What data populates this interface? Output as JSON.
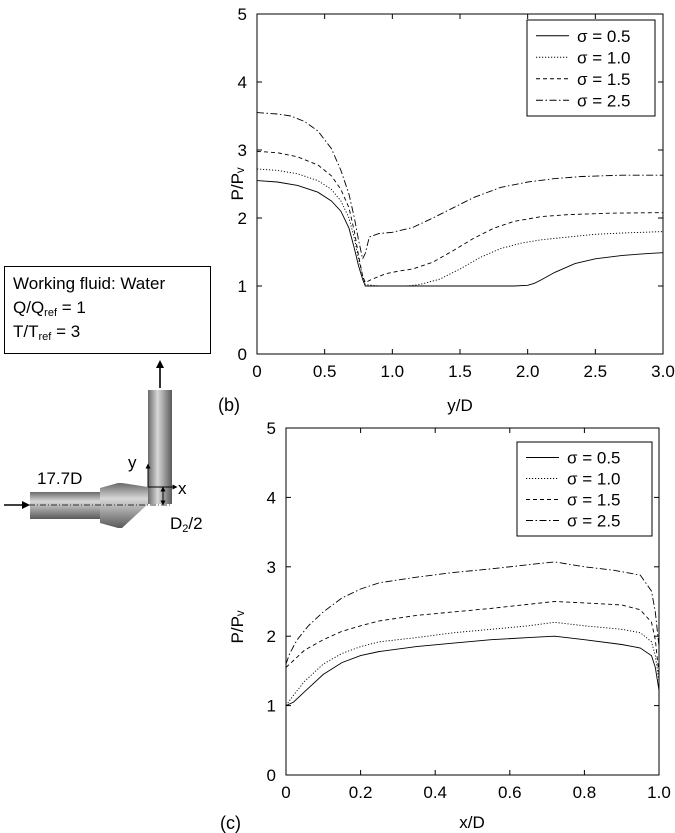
{
  "info_box": {
    "line1": "Working fluid: Water",
    "line2_main": "Q/Q",
    "line2_sub": "ref",
    "line2_val": " = 1",
    "line3_main": "T/T",
    "line3_sub": "ref",
    "line3_val": " = 3"
  },
  "schematic": {
    "length_label": "17.7D",
    "diameter_main": "D",
    "diameter_sub": "2",
    "diameter_tail": "/2",
    "x_axis_label": "x",
    "y_axis_label": "y"
  },
  "chart_data": [
    {
      "id": "b",
      "panel_label": "(b)",
      "type": "line",
      "xlabel": "y/D",
      "ylabel": "P/Pᵥ",
      "xlim": [
        0,
        3.0
      ],
      "ylim": [
        0,
        5
      ],
      "xticks": [
        "0",
        "0.5",
        "1.0",
        "1.5",
        "2.0",
        "2.5",
        "3.0"
      ],
      "xtick_values": [
        0,
        0.5,
        1.0,
        1.5,
        2.0,
        2.5,
        3.0
      ],
      "yticks": [
        "0",
        "1",
        "2",
        "3",
        "4",
        "5"
      ],
      "ytick_values": [
        0,
        1,
        2,
        3,
        4,
        5
      ],
      "legend_position": "top-right",
      "series": [
        {
          "name": "σ = 0.5",
          "dash": "",
          "points": [
            [
              0,
              2.55
            ],
            [
              0.15,
              2.53
            ],
            [
              0.3,
              2.48
            ],
            [
              0.45,
              2.38
            ],
            [
              0.55,
              2.25
            ],
            [
              0.62,
              2.1
            ],
            [
              0.68,
              1.85
            ],
            [
              0.72,
              1.55
            ],
            [
              0.75,
              1.3
            ],
            [
              0.78,
              1.1
            ],
            [
              0.8,
              1.0
            ],
            [
              1.0,
              1.0
            ],
            [
              1.5,
              1.0
            ],
            [
              1.9,
              1.0
            ],
            [
              2.0,
              1.01
            ],
            [
              2.05,
              1.04
            ],
            [
              2.1,
              1.09
            ],
            [
              2.2,
              1.2
            ],
            [
              2.35,
              1.33
            ],
            [
              2.5,
              1.4
            ],
            [
              2.7,
              1.45
            ],
            [
              2.9,
              1.48
            ],
            [
              3.0,
              1.49
            ]
          ]
        },
        {
          "name": "σ = 1.0",
          "dash": "1.2,1.8",
          "points": [
            [
              0,
              2.72
            ],
            [
              0.15,
              2.7
            ],
            [
              0.3,
              2.65
            ],
            [
              0.45,
              2.55
            ],
            [
              0.55,
              2.42
            ],
            [
              0.62,
              2.25
            ],
            [
              0.68,
              2.0
            ],
            [
              0.72,
              1.7
            ],
            [
              0.75,
              1.4
            ],
            [
              0.78,
              1.15
            ],
            [
              0.8,
              1.02
            ],
            [
              0.9,
              1.0
            ],
            [
              1.1,
              1.0
            ],
            [
              1.2,
              1.02
            ],
            [
              1.35,
              1.1
            ],
            [
              1.5,
              1.25
            ],
            [
              1.65,
              1.42
            ],
            [
              1.8,
              1.55
            ],
            [
              1.95,
              1.63
            ],
            [
              2.1,
              1.68
            ],
            [
              2.3,
              1.72
            ],
            [
              2.5,
              1.76
            ],
            [
              2.7,
              1.78
            ],
            [
              3.0,
              1.8
            ]
          ]
        },
        {
          "name": "σ = 1.5",
          "dash": "4,3",
          "points": [
            [
              0,
              2.98
            ],
            [
              0.15,
              2.96
            ],
            [
              0.3,
              2.9
            ],
            [
              0.45,
              2.78
            ],
            [
              0.55,
              2.62
            ],
            [
              0.62,
              2.42
            ],
            [
              0.68,
              2.15
            ],
            [
              0.72,
              1.8
            ],
            [
              0.75,
              1.45
            ],
            [
              0.78,
              1.15
            ],
            [
              0.8,
              1.05
            ],
            [
              0.85,
              1.1
            ],
            [
              0.95,
              1.18
            ],
            [
              1.05,
              1.22
            ],
            [
              1.15,
              1.25
            ],
            [
              1.3,
              1.35
            ],
            [
              1.45,
              1.52
            ],
            [
              1.6,
              1.7
            ],
            [
              1.75,
              1.85
            ],
            [
              1.9,
              1.95
            ],
            [
              2.1,
              2.02
            ],
            [
              2.3,
              2.05
            ],
            [
              2.6,
              2.07
            ],
            [
              3.0,
              2.08
            ]
          ]
        },
        {
          "name": "σ = 2.5",
          "dash": "7,2.5,1.5,2.5",
          "points": [
            [
              0,
              3.55
            ],
            [
              0.15,
              3.53
            ],
            [
              0.25,
              3.5
            ],
            [
              0.35,
              3.42
            ],
            [
              0.45,
              3.28
            ],
            [
              0.55,
              3.02
            ],
            [
              0.62,
              2.7
            ],
            [
              0.68,
              2.35
            ],
            [
              0.72,
              2.0
            ],
            [
              0.75,
              1.68
            ],
            [
              0.78,
              1.4
            ],
            [
              0.8,
              1.48
            ],
            [
              0.83,
              1.72
            ],
            [
              0.9,
              1.77
            ],
            [
              1.0,
              1.79
            ],
            [
              1.15,
              1.86
            ],
            [
              1.3,
              2.0
            ],
            [
              1.45,
              2.15
            ],
            [
              1.6,
              2.3
            ],
            [
              1.8,
              2.45
            ],
            [
              2.0,
              2.53
            ],
            [
              2.2,
              2.58
            ],
            [
              2.4,
              2.61
            ],
            [
              2.7,
              2.63
            ],
            [
              3.0,
              2.63
            ]
          ]
        }
      ]
    },
    {
      "id": "c",
      "panel_label": "(c)",
      "type": "line",
      "xlabel": "x/D",
      "ylabel": "P/Pᵥ",
      "xlim": [
        0,
        1.0
      ],
      "ylim": [
        0,
        5
      ],
      "xticks": [
        "0",
        "0.2",
        "0.4",
        "0.6",
        "0.8",
        "1.0"
      ],
      "xtick_values": [
        0,
        0.2,
        0.4,
        0.6,
        0.8,
        1.0
      ],
      "yticks": [
        "0",
        "1",
        "2",
        "3",
        "4",
        "5"
      ],
      "ytick_values": [
        0,
        1,
        2,
        3,
        4,
        5
      ],
      "legend_position": "top-right",
      "series": [
        {
          "name": "σ = 0.5",
          "dash": "",
          "points": [
            [
              0,
              1.0
            ],
            [
              0.02,
              1.05
            ],
            [
              0.05,
              1.2
            ],
            [
              0.1,
              1.45
            ],
            [
              0.15,
              1.62
            ],
            [
              0.2,
              1.72
            ],
            [
              0.25,
              1.78
            ],
            [
              0.35,
              1.85
            ],
            [
              0.45,
              1.9
            ],
            [
              0.55,
              1.95
            ],
            [
              0.65,
              1.98
            ],
            [
              0.72,
              2.0
            ],
            [
              0.8,
              1.95
            ],
            [
              0.9,
              1.88
            ],
            [
              0.95,
              1.83
            ],
            [
              0.98,
              1.72
            ],
            [
              0.99,
              1.55
            ],
            [
              1.0,
              1.22
            ]
          ]
        },
        {
          "name": "σ = 1.0",
          "dash": "1.2,1.8",
          "points": [
            [
              0,
              1.0
            ],
            [
              0.02,
              1.15
            ],
            [
              0.05,
              1.35
            ],
            [
              0.1,
              1.6
            ],
            [
              0.15,
              1.75
            ],
            [
              0.2,
              1.85
            ],
            [
              0.25,
              1.92
            ],
            [
              0.35,
              1.98
            ],
            [
              0.45,
              2.05
            ],
            [
              0.55,
              2.1
            ],
            [
              0.65,
              2.15
            ],
            [
              0.72,
              2.2
            ],
            [
              0.8,
              2.15
            ],
            [
              0.9,
              2.1
            ],
            [
              0.95,
              2.05
            ],
            [
              0.98,
              1.92
            ],
            [
              0.99,
              1.72
            ],
            [
              1.0,
              1.35
            ]
          ]
        },
        {
          "name": "σ = 1.5",
          "dash": "4,3",
          "points": [
            [
              0,
              1.55
            ],
            [
              0.02,
              1.65
            ],
            [
              0.05,
              1.8
            ],
            [
              0.1,
              1.95
            ],
            [
              0.15,
              2.07
            ],
            [
              0.2,
              2.15
            ],
            [
              0.25,
              2.22
            ],
            [
              0.35,
              2.3
            ],
            [
              0.45,
              2.35
            ],
            [
              0.55,
              2.4
            ],
            [
              0.65,
              2.46
            ],
            [
              0.72,
              2.5
            ],
            [
              0.8,
              2.48
            ],
            [
              0.9,
              2.45
            ],
            [
              0.95,
              2.38
            ],
            [
              0.98,
              2.2
            ],
            [
              0.99,
              1.95
            ],
            [
              1.0,
              1.45
            ]
          ]
        },
        {
          "name": "σ = 2.5",
          "dash": "7,2.5,1.5,2.5",
          "points": [
            [
              0,
              1.6
            ],
            [
              0.01,
              1.75
            ],
            [
              0.03,
              1.95
            ],
            [
              0.06,
              2.15
            ],
            [
              0.1,
              2.35
            ],
            [
              0.15,
              2.55
            ],
            [
              0.2,
              2.68
            ],
            [
              0.25,
              2.77
            ],
            [
              0.35,
              2.85
            ],
            [
              0.45,
              2.92
            ],
            [
              0.55,
              2.97
            ],
            [
              0.65,
              3.03
            ],
            [
              0.72,
              3.07
            ],
            [
              0.8,
              3.0
            ],
            [
              0.88,
              2.95
            ],
            [
              0.95,
              2.88
            ],
            [
              0.98,
              2.65
            ],
            [
              0.99,
              2.35
            ],
            [
              1.0,
              1.85
            ]
          ]
        }
      ]
    }
  ],
  "colors": {
    "ink": "#000000",
    "pipe_dark": "#555555",
    "pipe_light": "#d6d6d6"
  }
}
